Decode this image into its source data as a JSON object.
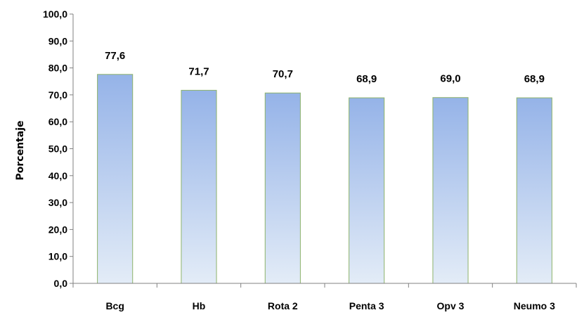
{
  "chart_data": {
    "type": "bar",
    "ylabel": "Porcentaje",
    "xlabel": "",
    "categories": [
      "Bcg",
      "Hb",
      "Rota 2",
      "Penta 3",
      "Opv 3",
      "Neumo 3"
    ],
    "values": [
      77.6,
      71.7,
      70.7,
      68.9,
      69.0,
      68.9
    ],
    "data_labels": [
      "77,6",
      "71,7",
      "70,7",
      "68,9",
      "69,0",
      "68,9"
    ],
    "ylim": [
      0,
      100
    ],
    "yticks": [
      "0,0",
      "10,0",
      "20,0",
      "30,0",
      "40,0",
      "50,0",
      "60,0",
      "70,0",
      "80,0",
      "90,0",
      "100,0"
    ],
    "grid": false,
    "legend": "none",
    "colors": {
      "bar_top": "#95B3E8",
      "bar_bottom": "#E3ECF7",
      "bar_border": "#8DB36A",
      "axis": "#808080"
    }
  }
}
